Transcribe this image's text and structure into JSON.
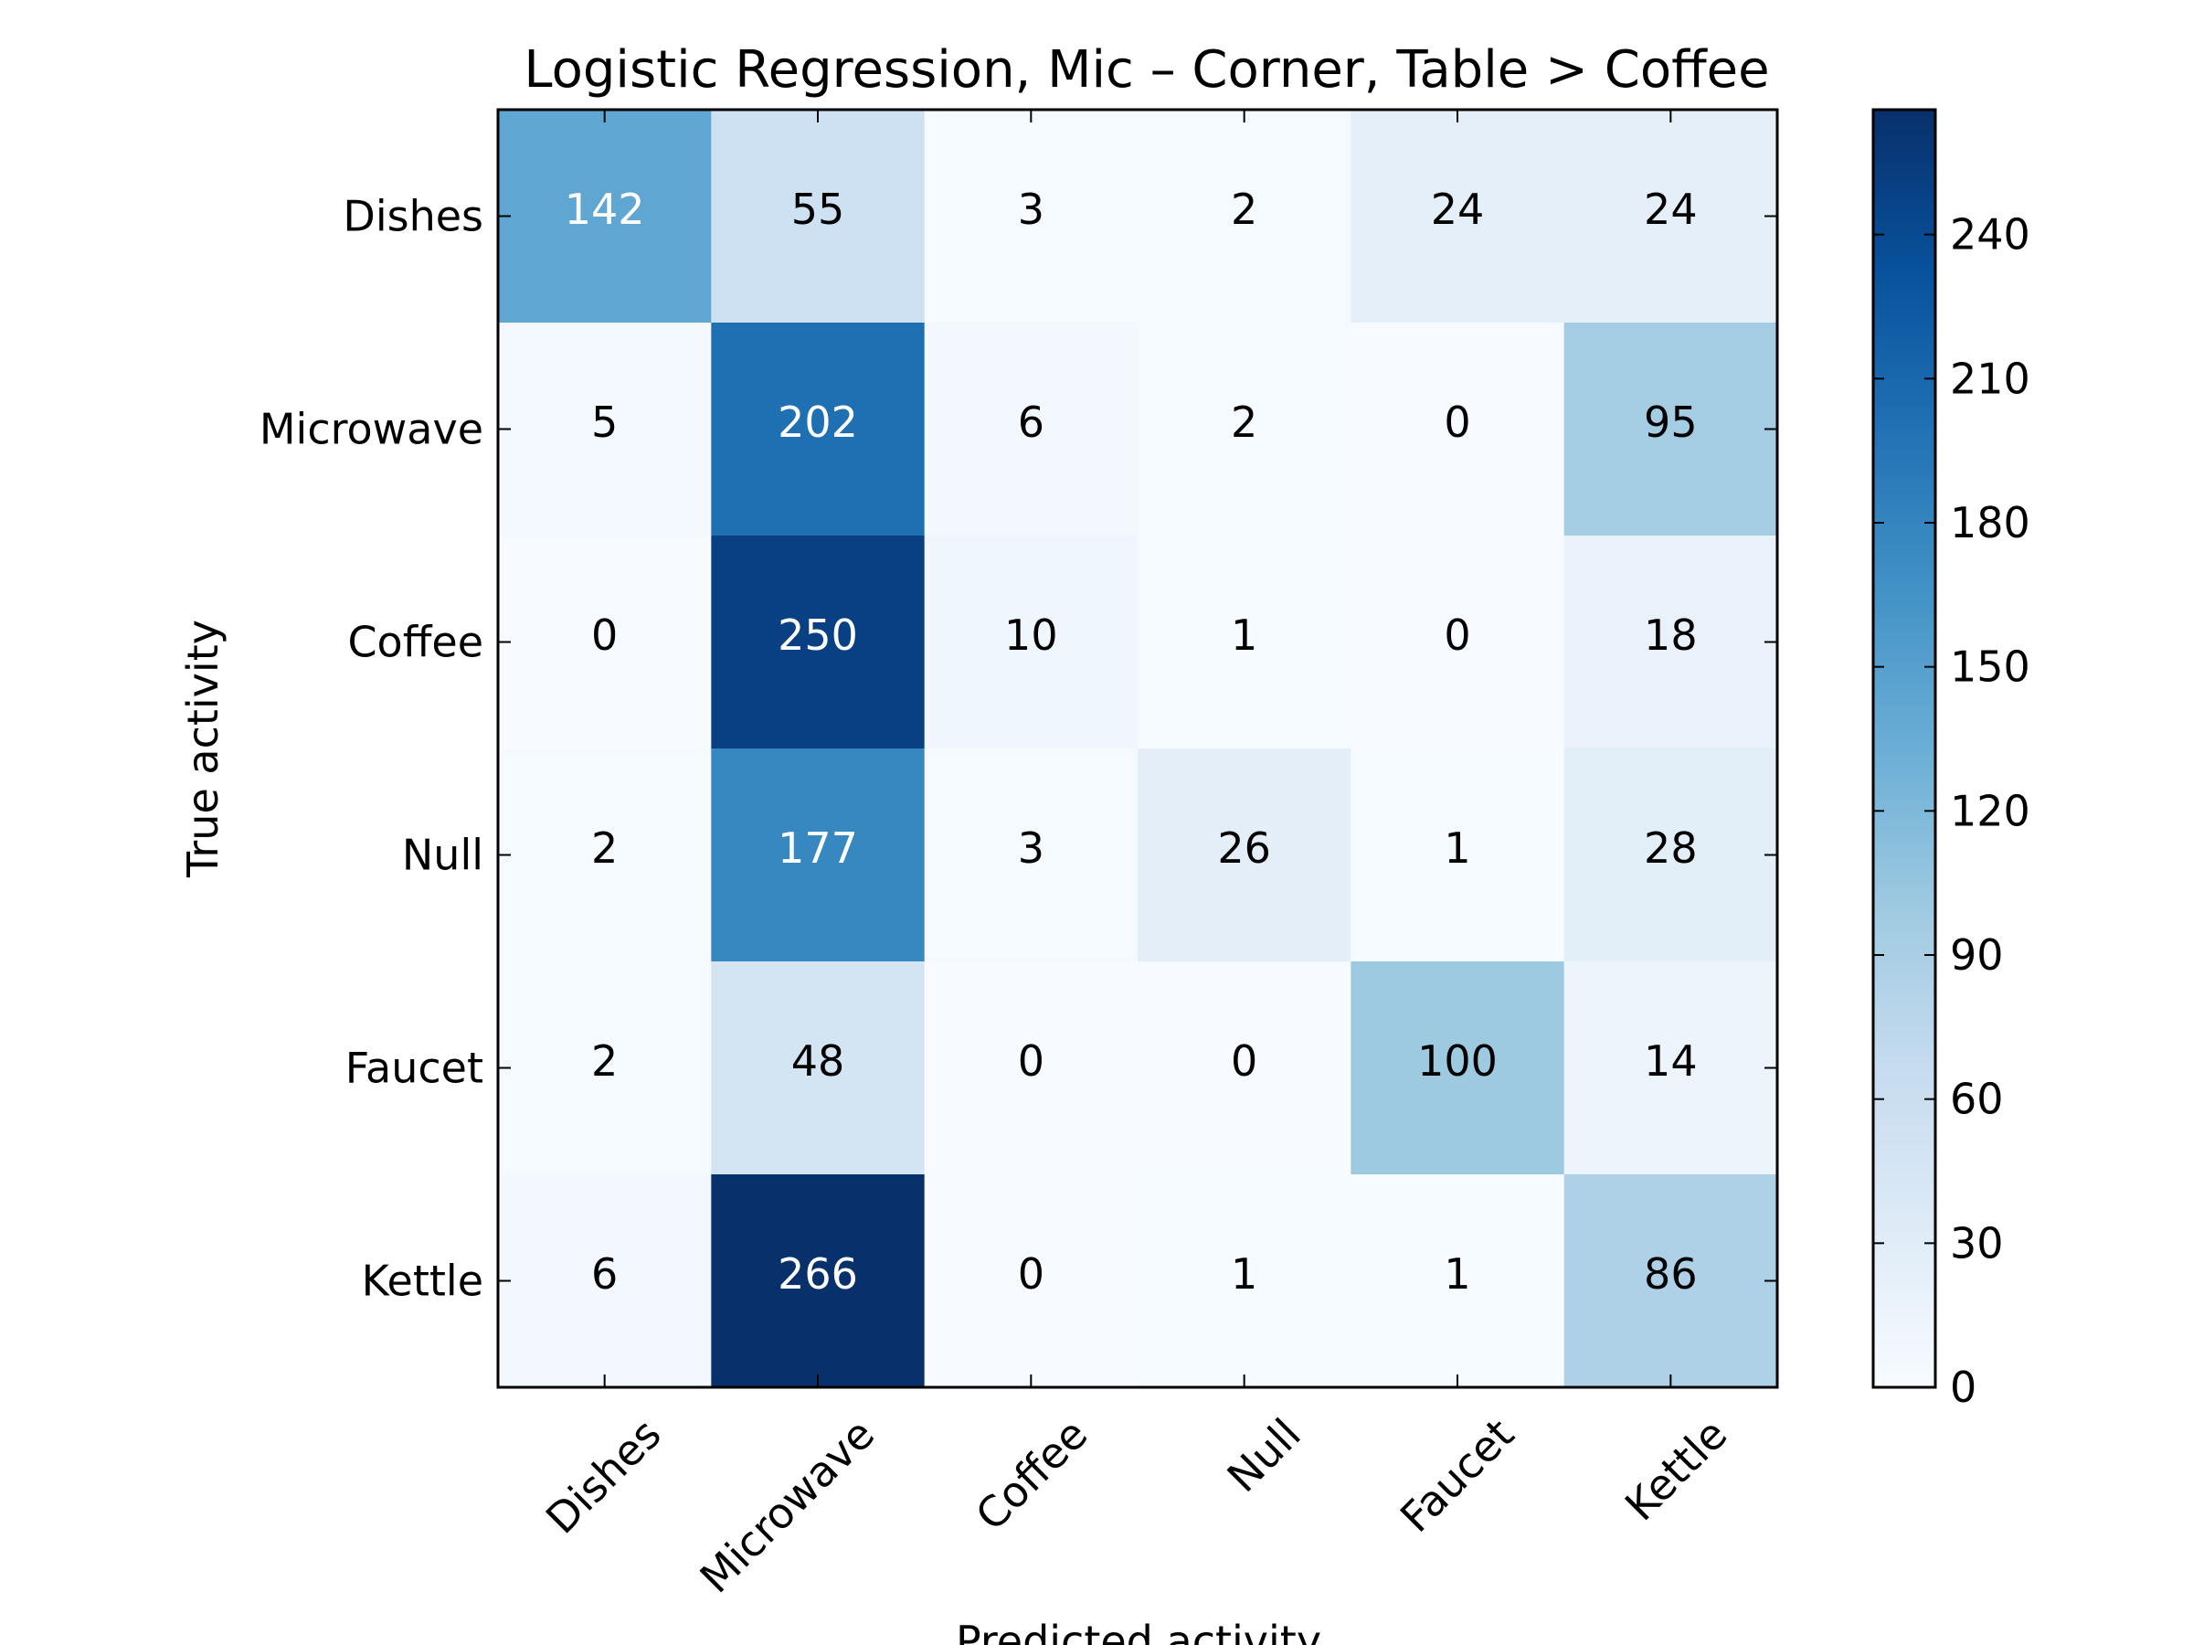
{
  "chart_data": {
    "type": "heatmap",
    "title": "Logistic Regression, Mic – Corner, Table > Coffee",
    "xlabel": "Predicted activity",
    "ylabel": "True activity",
    "x_categories": [
      "Dishes",
      "Microwave",
      "Coffee",
      "Null",
      "Faucet",
      "Kettle"
    ],
    "y_categories": [
      "Dishes",
      "Microwave",
      "Coffee",
      "Null",
      "Faucet",
      "Kettle"
    ],
    "values": [
      [
        142,
        55,
        3,
        2,
        24,
        24
      ],
      [
        5,
        202,
        6,
        2,
        0,
        95
      ],
      [
        0,
        250,
        10,
        1,
        0,
        18
      ],
      [
        2,
        177,
        3,
        26,
        1,
        28
      ],
      [
        2,
        48,
        0,
        0,
        100,
        14
      ],
      [
        6,
        266,
        0,
        1,
        1,
        86
      ]
    ],
    "colormap": "Blues",
    "colormap_stops": [
      "#f7fbff",
      "#deebf7",
      "#c6dbef",
      "#9ecae1",
      "#6baed6",
      "#4292c6",
      "#2171b5",
      "#08519c",
      "#08306b"
    ],
    "colorbar": {
      "range": [
        0,
        266
      ],
      "ticks": [
        "0",
        "30",
        "60",
        "90",
        "120",
        "150",
        "180",
        "210",
        "240"
      ]
    },
    "annotation_colors": {
      "dark_text": "#000000",
      "light_text": "#ffffff"
    },
    "grid": false,
    "legend": "colorbar-right"
  }
}
